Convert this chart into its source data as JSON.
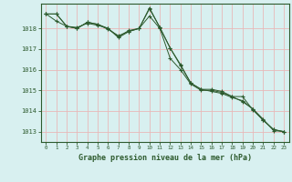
{
  "background_color": "#d8f0f0",
  "grid_color": "#e8b8b8",
  "line_color": "#2d5a2d",
  "marker_color": "#2d5a2d",
  "title": "Graphe pression niveau de la mer (hPa)",
  "xlim": [
    -0.5,
    23.5
  ],
  "ylim": [
    1012.5,
    1019.2
  ],
  "yticks": [
    1013,
    1014,
    1015,
    1016,
    1017,
    1018
  ],
  "xticks": [
    0,
    1,
    2,
    3,
    4,
    5,
    6,
    7,
    8,
    9,
    10,
    11,
    12,
    13,
    14,
    15,
    16,
    17,
    18,
    19,
    20,
    21,
    22,
    23
  ],
  "series": [
    [
      1018.7,
      1018.7,
      1018.1,
      1018.0,
      1018.3,
      1018.2,
      1017.95,
      1017.65,
      1017.85,
      1018.0,
      1018.95,
      1018.05,
      1017.05,
      1016.25,
      1015.35,
      1015.05,
      1015.05,
      1014.95,
      1014.7,
      1014.7,
      1014.05,
      1013.55,
      1013.1,
      1013.0
    ],
    [
      1018.7,
      1018.7,
      1018.1,
      1018.0,
      1018.3,
      1018.2,
      1018.0,
      1017.55,
      1017.85,
      1018.0,
      1019.0,
      1018.05,
      1017.05,
      1016.2,
      1015.35,
      1015.05,
      1014.95,
      1014.85,
      1014.65,
      1014.5,
      1014.1,
      1013.6,
      1013.05,
      1013.0
    ],
    [
      1018.7,
      1018.35,
      1018.1,
      1018.05,
      1018.25,
      1018.15,
      1018.0,
      1017.6,
      1017.9,
      1018.0,
      1018.6,
      1018.0,
      1016.55,
      1016.0,
      1015.3,
      1015.0,
      1015.0,
      1014.9,
      1014.7,
      1014.45,
      1014.1,
      1013.55,
      1013.1,
      1013.0
    ]
  ]
}
